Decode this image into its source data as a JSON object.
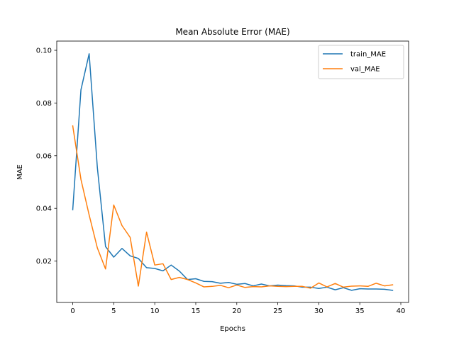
{
  "chart_data": {
    "type": "line",
    "title": "Mean Absolute Error (MAE)",
    "xlabel": "Epochs",
    "ylabel": "MAE",
    "xlim": [
      -1.95,
      40.95
    ],
    "ylim": [
      0.0043,
      0.1035
    ],
    "xticks": [
      0,
      5,
      10,
      15,
      20,
      25,
      30,
      35,
      40
    ],
    "xtick_labels": [
      "0",
      "5",
      "10",
      "15",
      "20",
      "25",
      "30",
      "35",
      "40"
    ],
    "yticks": [
      0.02,
      0.04,
      0.06,
      0.08,
      0.1
    ],
    "ytick_labels": [
      "0.02",
      "0.04",
      "0.06",
      "0.08",
      "0.10"
    ],
    "grid": false,
    "legend_position": "top-right",
    "x": [
      0,
      1,
      2,
      3,
      4,
      5,
      6,
      7,
      8,
      9,
      10,
      11,
      12,
      13,
      14,
      15,
      16,
      17,
      18,
      19,
      20,
      21,
      22,
      23,
      24,
      25,
      26,
      27,
      28,
      29,
      30,
      31,
      32,
      33,
      34,
      35,
      36,
      37,
      38,
      39
    ],
    "series": [
      {
        "name": "train_MAE",
        "color": "#1f77b4",
        "values": [
          0.0395,
          0.085,
          0.0987,
          0.0555,
          0.0255,
          0.0215,
          0.0248,
          0.022,
          0.021,
          0.0175,
          0.0172,
          0.0163,
          0.0185,
          0.0162,
          0.013,
          0.0133,
          0.0123,
          0.0122,
          0.0116,
          0.0119,
          0.0112,
          0.0115,
          0.0106,
          0.0113,
          0.0106,
          0.0109,
          0.0107,
          0.0106,
          0.0101,
          0.0101,
          0.0096,
          0.0101,
          0.0091,
          0.0099,
          0.0089,
          0.0095,
          0.0094,
          0.0094,
          0.0093,
          0.0089
        ]
      },
      {
        "name": "val_MAE",
        "color": "#ff7f0e",
        "values": [
          0.0713,
          0.051,
          0.0375,
          0.025,
          0.017,
          0.0413,
          0.0335,
          0.029,
          0.0105,
          0.031,
          0.0185,
          0.019,
          0.013,
          0.0138,
          0.013,
          0.0117,
          0.0102,
          0.0104,
          0.0108,
          0.0099,
          0.0109,
          0.01,
          0.0103,
          0.0102,
          0.0106,
          0.0104,
          0.0103,
          0.0104,
          0.0104,
          0.0097,
          0.0117,
          0.0102,
          0.0115,
          0.0101,
          0.0105,
          0.0106,
          0.0104,
          0.0116,
          0.0106,
          0.011
        ]
      }
    ]
  }
}
